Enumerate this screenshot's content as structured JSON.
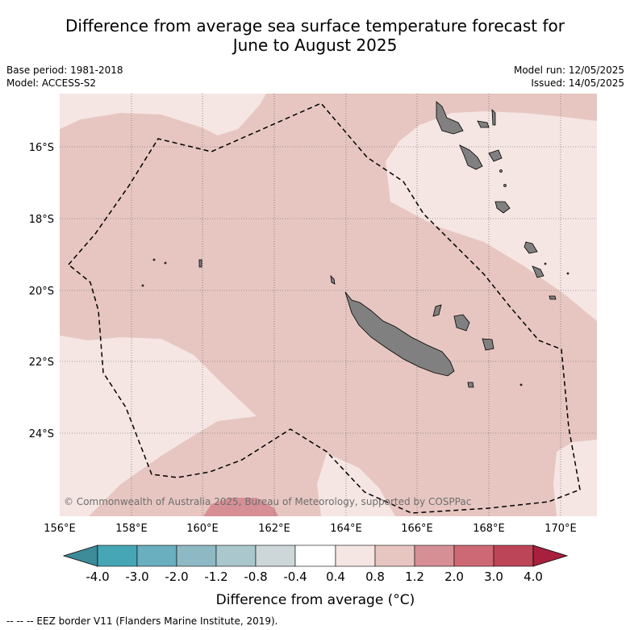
{
  "title": {
    "line1": "Difference from average sea surface temperature forecast for",
    "line2": "June to August 2025"
  },
  "left_info": {
    "base_period": "Base period: 1981-2018",
    "model": "Model: ACCESS-S2"
  },
  "right_info": {
    "model_run": "Model run: 12/05/2025",
    "issued": "Issued: 14/05/2025"
  },
  "map": {
    "lat_labels": [
      "16°S",
      "18°S",
      "20°S",
      "22°S",
      "24°S"
    ],
    "lon_labels": [
      "156°E",
      "158°E",
      "160°E",
      "162°E",
      "164°E",
      "166°E",
      "168°E",
      "170°E"
    ],
    "copyright": "© Commonwealth of Australia 2025, Bureau of Meteorology, supported by COSPPac",
    "colors": {
      "anomaly_0_4_to_0_8": "#f5e6e4",
      "anomaly_0_8_to_1_2": "#e7c6c1",
      "anomaly_1_2_to_2_0": "#d68f95",
      "land": "#808080",
      "eez_border": "#000000"
    }
  },
  "colorbar": {
    "ticks": [
      "-4.0",
      "-3.0",
      "-2.0",
      "-1.2",
      "-0.8",
      "-0.4",
      "0.4",
      "0.8",
      "1.2",
      "2.0",
      "3.0",
      "4.0"
    ],
    "colors": [
      "#3d8a99",
      "#46a6b5",
      "#6aafbf",
      "#8eb8c4",
      "#a9c7cc",
      "#cdd7d9",
      "#ffffff",
      "#f5e6e4",
      "#e7c6c1",
      "#d68f95",
      "#cd6974",
      "#bc4557",
      "#a8203d"
    ],
    "title": "Difference from average (°C)"
  },
  "footnote": "-- -- -- EEZ border V11 (Flanders Marine Institute, 2019)."
}
